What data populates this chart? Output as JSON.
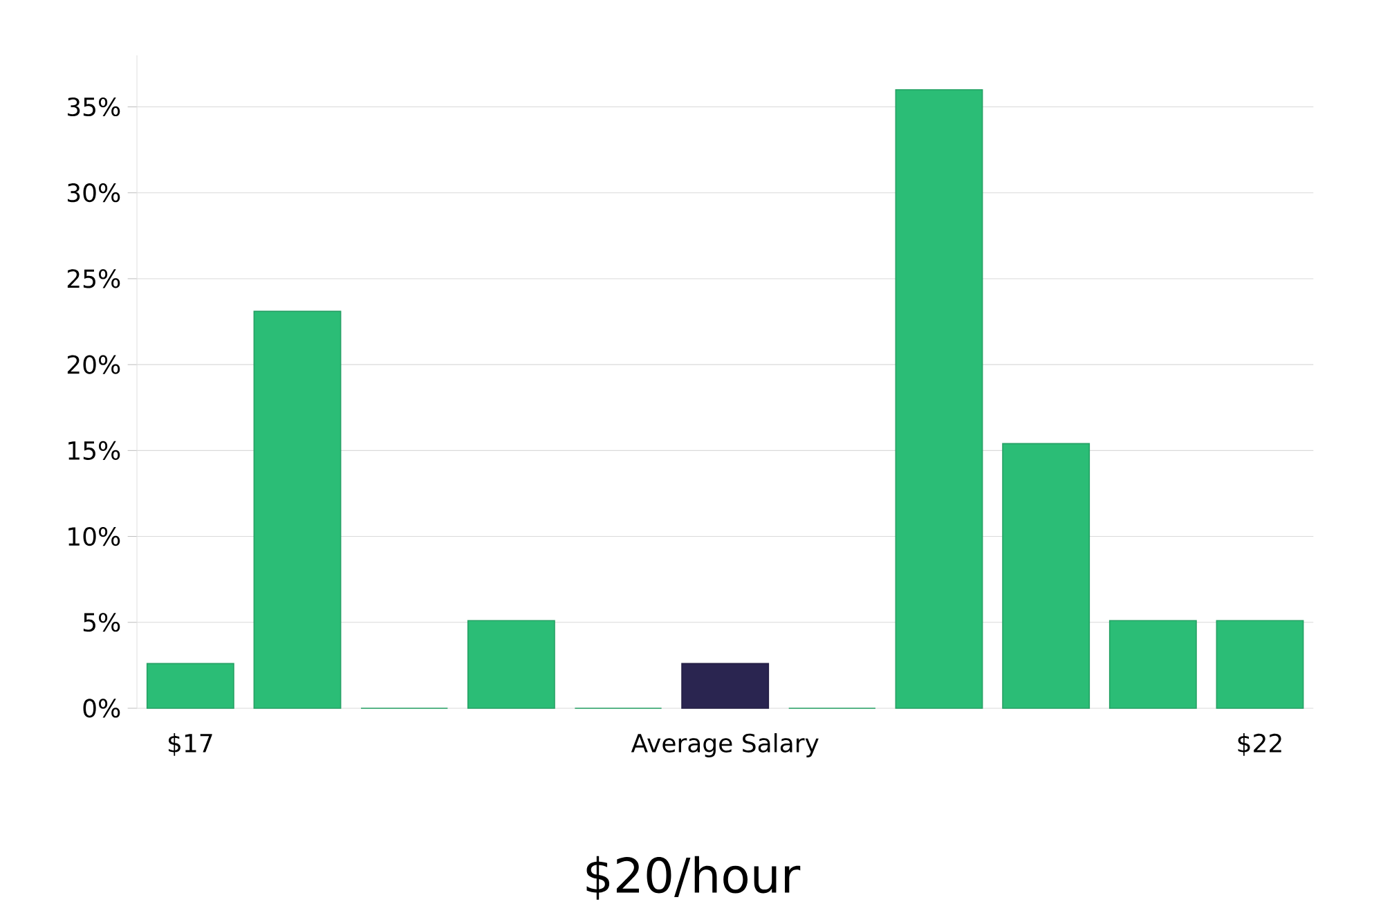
{
  "chart_data": {
    "type": "bar",
    "title": "$20/hour",
    "categories": [
      "$17",
      null,
      null,
      null,
      null,
      "Average Salary",
      null,
      null,
      null,
      null,
      "$22"
    ],
    "values": [
      2.6,
      23.1,
      0,
      5.1,
      0,
      2.6,
      0,
      36,
      15.4,
      5.1,
      5.1
    ],
    "colors": [
      "#2bbd76",
      "#2bbd76",
      "#2bbd76",
      "#2bbd76",
      "#2bbd76",
      "#2a2550",
      "#2bbd76",
      "#2bbd76",
      "#2bbd76",
      "#2bbd76",
      "#2bbd76"
    ],
    "ylim": [
      0,
      38
    ],
    "yticks": [
      {
        "value": 0,
        "label": "0%"
      },
      {
        "value": 5,
        "label": "5%"
      },
      {
        "value": 10,
        "label": "10%"
      },
      {
        "value": 15,
        "label": "15%"
      },
      {
        "value": 20,
        "label": "20%"
      },
      {
        "value": 25,
        "label": "25%"
      },
      {
        "value": 30,
        "label": "30%"
      },
      {
        "value": 35,
        "label": "35%"
      }
    ],
    "grid": "y"
  }
}
